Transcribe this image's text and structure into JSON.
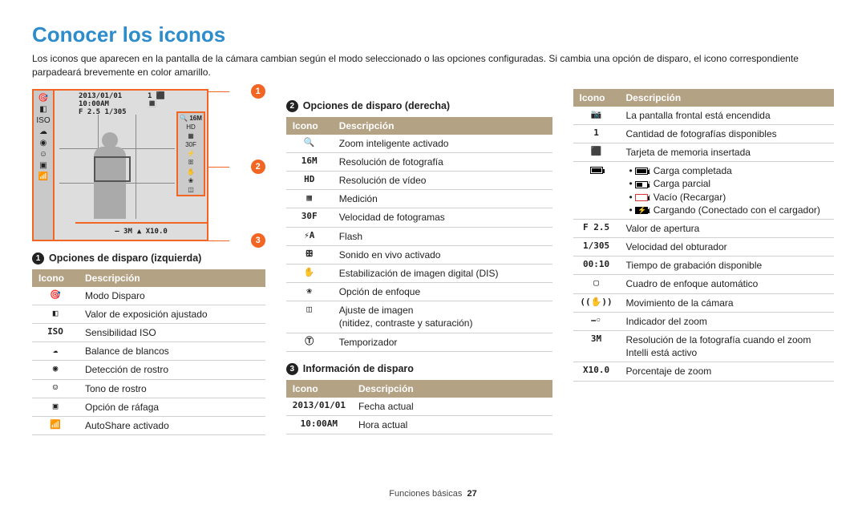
{
  "title": "Conocer los iconos",
  "intro": "Los iconos que aparecen en la pantalla de la cámara cambian según el modo seleccionado o las opciones configuradas. Si cambia una opción de disparo, el icono correspondiente parpadeará brevemente en color amarillo.",
  "lcd": {
    "top_left1": "2013/01/01  10:00AM",
    "sub_left": "F 2.5  1/305",
    "top_right": "1  ⬛ 🔳",
    "right_label": "16M",
    "bottom_left": "— 3M",
    "bottom_right": "▲ X10.0",
    "callouts": {
      "c1": "1",
      "c2": "2",
      "c3": "3"
    }
  },
  "colors": {
    "accent": "#f26522",
    "heading": "#2d8ccc",
    "table_header": "#b4a284",
    "row_border": "#d0d0d0"
  },
  "sections": {
    "s1": {
      "num": "1",
      "title": "Opciones de disparo (izquierda)"
    },
    "s2": {
      "num": "2",
      "title": "Opciones de disparo (derecha)"
    },
    "s3": {
      "num": "3",
      "title": "Información de disparo"
    }
  },
  "headers": {
    "icono": "Icono",
    "desc": "Descripción"
  },
  "t1": [
    {
      "icon": "🎯",
      "desc": "Modo Disparo"
    },
    {
      "icon": "◧",
      "desc": "Valor de exposición ajustado"
    },
    {
      "icon": "ISO",
      "desc": "Sensibilidad ISO"
    },
    {
      "icon": "☁",
      "desc": "Balance de blancos"
    },
    {
      "icon": "◉",
      "desc": "Detección de rostro"
    },
    {
      "icon": "☺",
      "desc": "Tono de rostro"
    },
    {
      "icon": "▣",
      "desc": "Opción de ráfaga"
    },
    {
      "icon": "📶",
      "desc": "AutoShare activado"
    }
  ],
  "t2": [
    {
      "icon": "🔍",
      "desc": "Zoom inteligente activado"
    },
    {
      "icon": "16M",
      "desc": "Resolución de fotografía"
    },
    {
      "icon": "HD",
      "desc": "Resolución de vídeo"
    },
    {
      "icon": "▦",
      "desc": "Medición"
    },
    {
      "icon": "30F",
      "desc": "Velocidad de fotogramas"
    },
    {
      "icon": "⚡A",
      "desc": "Flash"
    },
    {
      "icon": "ꕥ",
      "desc": "Sonido en vivo activado"
    },
    {
      "icon": "✋",
      "desc": "Estabilización de imagen digital (DIS)"
    },
    {
      "icon": "❀",
      "desc": "Opción de enfoque"
    },
    {
      "icon": "◫",
      "desc": "Ajuste de imagen\n(nitidez, contraste y saturación)"
    },
    {
      "icon": "Ⓣ",
      "desc": "Temporizador"
    }
  ],
  "t3": [
    {
      "icon": "2013/01/01",
      "desc": "Fecha actual"
    },
    {
      "icon": "10:00AM",
      "desc": "Hora actual"
    }
  ],
  "t4": [
    {
      "icon": "📷",
      "desc": "La pantalla frontal está encendida"
    },
    {
      "icon": "1",
      "desc": "Cantidad de fotografías disponibles"
    },
    {
      "icon": "⬛",
      "desc": "Tarjeta de memoria insertada"
    },
    {
      "icon": "batt",
      "desc": "battery_block"
    },
    {
      "icon": "F 2.5",
      "desc": "Valor de apertura"
    },
    {
      "icon": "1/305",
      "desc": "Velocidad del obturador"
    },
    {
      "icon": "00:10",
      "desc": "Tiempo de grabación disponible"
    },
    {
      "icon": "▢",
      "desc": "Cuadro de enfoque automático"
    },
    {
      "icon": "((✋))",
      "desc": "Movimiento de la cámara"
    },
    {
      "icon": "⎯◦",
      "desc": "Indicador del zoom"
    },
    {
      "icon": "3M",
      "desc": "Resolución de la fotografía cuando el zoom Intelli está activo"
    },
    {
      "icon": "X10.0",
      "desc": "Porcentaje de zoom"
    }
  ],
  "battery": {
    "full": "Carga completada",
    "half": "Carga parcial",
    "empty": "Vacío (Recargar)",
    "chg": "Cargando (Conectado con el cargador)"
  },
  "footer": {
    "section": "Funciones básicas",
    "page": "27"
  }
}
